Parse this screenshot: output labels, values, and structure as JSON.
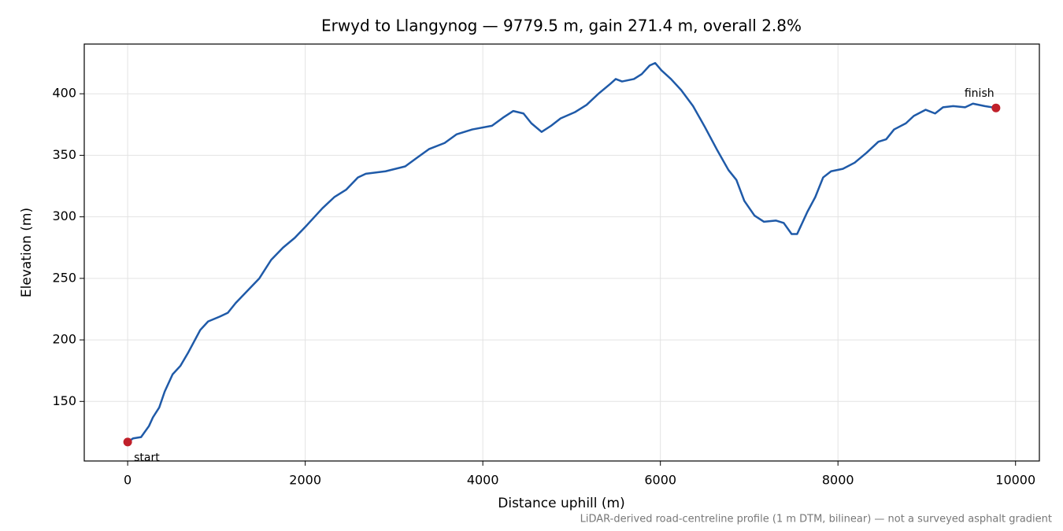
{
  "chart_data": {
    "type": "line",
    "title": "Erwyd to Llangynog — 9779.5 m, gain 271.4 m, overall 2.8%",
    "x_label": "Distance uphill (m)",
    "y_label": "Elevation (m)",
    "footnote": "LiDAR-derived road-centreline profile (1 m DTM, bilinear) — not a surveyed asphalt gradient",
    "x": [
      0,
      62,
      151,
      240,
      284,
      355,
      417,
      506,
      595,
      684,
      817,
      906,
      1039,
      1128,
      1217,
      1350,
      1483,
      1616,
      1750,
      1883,
      2016,
      2194,
      2327,
      2460,
      2593,
      2682,
      2904,
      3126,
      3259,
      3393,
      3570,
      3703,
      3881,
      4103,
      4236,
      4343,
      4458,
      4547,
      4662,
      4769,
      4876,
      5036,
      5169,
      5302,
      5435,
      5497,
      5568,
      5702,
      5790,
      5879,
      5941,
      6012,
      6119,
      6234,
      6368,
      6501,
      6634,
      6767,
      6856,
      6945,
      7060,
      7167,
      7300,
      7389,
      7478,
      7540,
      7655,
      7744,
      7833,
      7922,
      8055,
      8188,
      8321,
      8455,
      8543,
      8632,
      8765,
      8854,
      8988,
      9094,
      9183,
      9298,
      9432,
      9520,
      9654,
      9779.5
    ],
    "series": [
      {
        "name": "Elevation",
        "color": "#1f5aa8",
        "values": [
          117,
          120,
          121,
          130,
          137,
          145,
          158,
          172,
          179,
          190,
          208,
          215,
          219,
          222,
          230,
          240,
          250,
          265,
          275,
          283,
          293,
          307,
          316,
          322,
          332,
          335,
          337,
          341,
          348,
          355,
          360,
          367,
          371,
          374,
          381,
          386,
          384,
          376,
          369,
          374,
          380,
          385,
          391,
          400,
          408,
          412,
          410,
          412,
          416,
          423,
          425,
          419,
          412,
          403,
          390,
          373,
          355,
          338,
          330,
          313,
          301,
          296,
          297,
          295,
          286,
          286,
          304,
          316,
          332,
          337,
          339,
          344,
          352,
          361,
          363,
          371,
          376,
          382,
          387,
          384,
          389,
          390,
          389,
          392,
          390,
          388.5
        ]
      }
    ],
    "points": [
      {
        "label": "start",
        "x": 0,
        "y": 117,
        "color": "#c0202a"
      },
      {
        "label": "finish",
        "x": 9779.5,
        "y": 388.5,
        "color": "#c0202a"
      }
    ],
    "xlim": [
      -489,
      10268.5
    ],
    "ylim": [
      101.6,
      440.4
    ],
    "xticks": [
      0,
      2000,
      4000,
      6000,
      8000,
      10000
    ],
    "yticks": [
      150,
      200,
      250,
      300,
      350,
      400
    ],
    "grid": true
  }
}
